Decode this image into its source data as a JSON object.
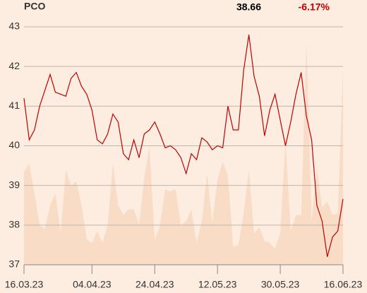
{
  "chart_data": {
    "type": "line",
    "title": "PCO",
    "last_price": 38.66,
    "change_label": "-6.17%",
    "series": [
      {
        "type": "area",
        "color": "#f8dcc6",
        "values": [
          39.35,
          39.55,
          38.8,
          38.0,
          37.9,
          38.5,
          38.8,
          37.8,
          39.4,
          39.0,
          39.1,
          38.5,
          37.65,
          37.55,
          37.85,
          37.55,
          38.0,
          39.55,
          38.5,
          38.25,
          38.4,
          38.4,
          38.0,
          39.2,
          40.0,
          37.6,
          38.0,
          38.9,
          38.85,
          38.9,
          38.0,
          38.1,
          38.4,
          37.55,
          38.1,
          39.3,
          38.05,
          39.15,
          39.6,
          39.25,
          37.45,
          37.5,
          38.3,
          39.4,
          37.8,
          37.95,
          37.6,
          37.55,
          37.4,
          37.8,
          40.1,
          37.85,
          38.25,
          38.25,
          42.6,
          38.1,
          39.45,
          38.45,
          38.6,
          38.25,
          38.3,
          41.9
        ]
      },
      {
        "type": "line",
        "color": "#c00000",
        "values": [
          41.2,
          40.15,
          40.4,
          41.0,
          41.4,
          41.8,
          41.35,
          41.3,
          41.25,
          41.7,
          41.85,
          41.5,
          41.3,
          40.9,
          40.15,
          40.05,
          40.3,
          40.8,
          40.6,
          39.8,
          39.65,
          40.15,
          39.7,
          40.3,
          40.4,
          40.6,
          40.3,
          39.95,
          40.0,
          39.9,
          39.7,
          39.3,
          39.8,
          39.65,
          40.2,
          40.1,
          39.9,
          40.0,
          39.95,
          41.0,
          40.4,
          40.4,
          41.9,
          42.8,
          41.75,
          41.25,
          40.25,
          40.9,
          41.3,
          40.65,
          40.0,
          40.6,
          41.3,
          41.85,
          40.75,
          40.15,
          38.5,
          38.1,
          37.2,
          37.7,
          37.85,
          38.66
        ]
      }
    ],
    "xlim": [
      0,
      61
    ],
    "xticks": [
      {
        "value": 0,
        "label": "16.03.23"
      },
      {
        "value": 13,
        "label": "04.04.23"
      },
      {
        "value": 25,
        "label": "24.04.23"
      },
      {
        "value": 37,
        "label": "12.05.23"
      },
      {
        "value": 49,
        "label": "30.05.23"
      },
      {
        "value": 61,
        "label": "16.06.23"
      }
    ],
    "ylim": [
      37,
      43
    ],
    "yticks": [
      37,
      38,
      39,
      40,
      41,
      42,
      43
    ],
    "grid": true
  }
}
